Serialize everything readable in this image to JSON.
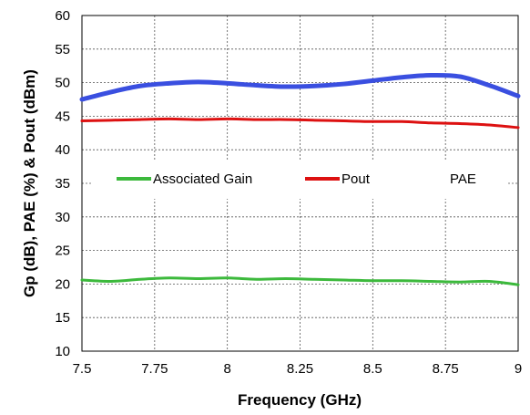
{
  "chart_data": {
    "type": "line",
    "xlabel": "Frequency (GHz)",
    "ylabel": "Gp (dB), PAE (%) & Pout (dBm)",
    "xlim": [
      7.5,
      9
    ],
    "ylim": [
      10,
      60
    ],
    "xticks": [
      "7.5",
      "7.75",
      "8",
      "8.25",
      "8.5",
      "8.75",
      "9"
    ],
    "yticks": [
      "10",
      "15",
      "20",
      "25",
      "30",
      "35",
      "40",
      "45",
      "50",
      "55",
      "60"
    ],
    "grid": true,
    "legend_position": "center",
    "series": [
      {
        "name": "Associated Gain",
        "color": "#3cb93c",
        "x": [
          7.5,
          7.6,
          7.7,
          7.8,
          7.9,
          8.0,
          8.1,
          8.2,
          8.3,
          8.4,
          8.5,
          8.6,
          8.7,
          8.8,
          8.9,
          9.0
        ],
        "y": [
          20.6,
          20.4,
          20.7,
          20.9,
          20.8,
          20.9,
          20.7,
          20.8,
          20.7,
          20.6,
          20.5,
          20.5,
          20.4,
          20.3,
          20.4,
          19.9
        ]
      },
      {
        "name": "Pout",
        "color": "#dd1111",
        "x": [
          7.5,
          7.6,
          7.7,
          7.8,
          7.9,
          8.0,
          8.1,
          8.2,
          8.3,
          8.4,
          8.5,
          8.6,
          8.7,
          8.8,
          8.9,
          9.0
        ],
        "y": [
          44.3,
          44.4,
          44.5,
          44.6,
          44.5,
          44.6,
          44.5,
          44.5,
          44.4,
          44.3,
          44.2,
          44.2,
          44.0,
          43.9,
          43.7,
          43.3
        ]
      },
      {
        "name": "PAE",
        "color": "#3a4fe0",
        "x": [
          7.5,
          7.6,
          7.7,
          7.8,
          7.9,
          8.0,
          8.1,
          8.2,
          8.3,
          8.4,
          8.5,
          8.6,
          8.7,
          8.8,
          8.9,
          9.0
        ],
        "y": [
          47.5,
          48.6,
          49.5,
          49.9,
          50.1,
          49.9,
          49.6,
          49.4,
          49.5,
          49.8,
          50.3,
          50.8,
          51.1,
          50.9,
          49.6,
          48.0
        ]
      }
    ]
  }
}
